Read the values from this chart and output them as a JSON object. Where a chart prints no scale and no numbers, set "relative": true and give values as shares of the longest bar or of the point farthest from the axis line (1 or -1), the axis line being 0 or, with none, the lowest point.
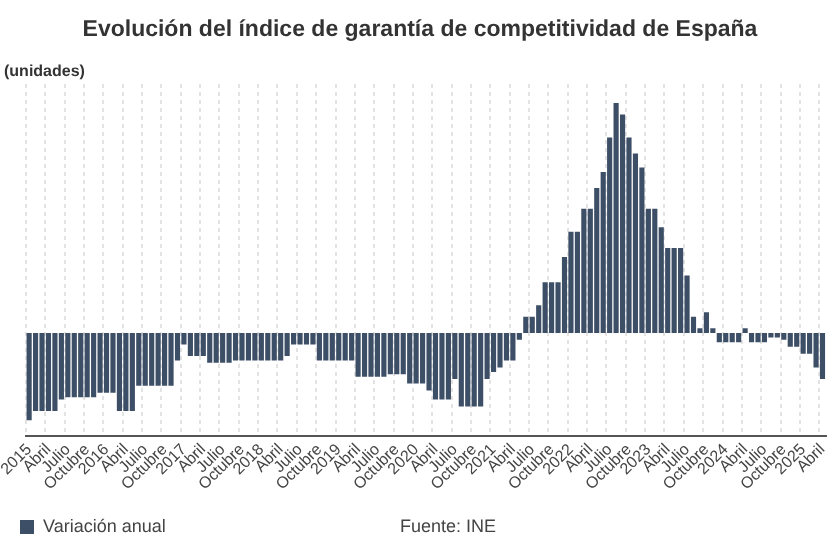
{
  "chart_data": {
    "type": "bar",
    "title": "Evolución del índice de garantía de competitividad de España",
    "ylabel": "(unidades)",
    "relative": true,
    "grid": "x",
    "legend": "bottom",
    "annotations": [
      "Fuente: INE"
    ],
    "categories": [
      "2015",
      null,
      null,
      "Abril",
      null,
      null,
      "Julio",
      null,
      null,
      "Octubre",
      null,
      null,
      "2016",
      null,
      null,
      "Abril",
      null,
      null,
      "Julio",
      null,
      null,
      "Octubre",
      null,
      null,
      "2017",
      null,
      null,
      "Abril",
      null,
      null,
      "Julio",
      null,
      null,
      "Octubre",
      null,
      null,
      "2018",
      null,
      null,
      "Abril",
      null,
      null,
      "Julio",
      null,
      null,
      "Octubre",
      null,
      null,
      "2019",
      null,
      null,
      "Abril",
      null,
      null,
      "Julio",
      null,
      null,
      "Octubre",
      null,
      null,
      "2020",
      null,
      null,
      "Abril",
      null,
      null,
      "Julio",
      null,
      null,
      "Octubre",
      null,
      null,
      "2021",
      null,
      null,
      "Abril",
      null,
      null,
      "Julio",
      null,
      null,
      "Octubre",
      null,
      null,
      "2022",
      null,
      null,
      "Abril",
      null,
      null,
      "Julio",
      null,
      null,
      "Octubre",
      null,
      null,
      "2023",
      null,
      null,
      "Abril",
      null,
      null,
      "Julio",
      null,
      null,
      "Octubre",
      null,
      null,
      "2024",
      null,
      null,
      "Abril",
      null,
      null,
      "Julio",
      null,
      null,
      "Octubre",
      null,
      null,
      "2025",
      null,
      null,
      "Abril"
    ],
    "series": [
      {
        "name": "Variación anual",
        "color": "#3d4f66",
        "values": [
          -0.38,
          -0.34,
          -0.34,
          -0.34,
          -0.34,
          -0.29,
          -0.28,
          -0.28,
          -0.28,
          -0.28,
          -0.28,
          -0.26,
          -0.26,
          -0.26,
          -0.34,
          -0.34,
          -0.34,
          -0.23,
          -0.23,
          -0.23,
          -0.23,
          -0.23,
          -0.23,
          -0.12,
          -0.05,
          -0.1,
          -0.1,
          -0.1,
          -0.13,
          -0.13,
          -0.13,
          -0.13,
          -0.12,
          -0.12,
          -0.12,
          -0.12,
          -0.12,
          -0.12,
          -0.12,
          -0.12,
          -0.1,
          -0.05,
          -0.05,
          -0.05,
          -0.05,
          -0.12,
          -0.12,
          -0.12,
          -0.12,
          -0.12,
          -0.12,
          -0.19,
          -0.19,
          -0.19,
          -0.19,
          -0.19,
          -0.18,
          -0.18,
          -0.18,
          -0.22,
          -0.22,
          -0.22,
          -0.25,
          -0.29,
          -0.29,
          -0.29,
          -0.2,
          -0.32,
          -0.32,
          -0.32,
          -0.32,
          -0.2,
          -0.17,
          -0.15,
          -0.12,
          -0.12,
          -0.03,
          0.07,
          0.07,
          0.12,
          0.22,
          0.22,
          0.22,
          0.33,
          0.44,
          0.44,
          0.54,
          0.54,
          0.63,
          0.7,
          0.85,
          1,
          0.95,
          0.85,
          0.78,
          0.72,
          0.54,
          0.54,
          0.46,
          0.37,
          0.37,
          0.37,
          0.25,
          0.07,
          0.02,
          0.09,
          0.02,
          -0.04,
          -0.04,
          -0.04,
          -0.04,
          0.02,
          -0.04,
          -0.04,
          -0.04,
          -0.02,
          -0.02,
          -0.03,
          -0.06,
          -0.06,
          -0.09,
          -0.09,
          -0.15,
          -0.2
        ]
      }
    ]
  }
}
